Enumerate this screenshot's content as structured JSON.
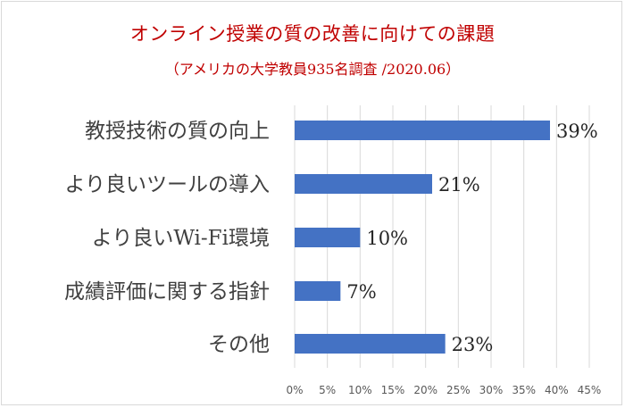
{
  "chart_data": {
    "type": "bar",
    "orientation": "horizontal",
    "title": "オンライン授業の質の改善に向けての課題",
    "subtitle": "（アメリカの大学教員935名調査 /2020.06）",
    "categories": [
      "教授技術の質の向上",
      "より良いツールの導入",
      "より良いWi-Fi環境",
      "成績評価に関する指針",
      "その他"
    ],
    "values": [
      39,
      21,
      10,
      7,
      23
    ],
    "value_labels": [
      "39%",
      "21%",
      "10%",
      "7%",
      "23%"
    ],
    "xlim": [
      0,
      45
    ],
    "xticks": [
      0,
      5,
      10,
      15,
      20,
      25,
      30,
      35,
      40,
      45
    ],
    "xtick_labels": [
      "0%",
      "5%",
      "10%",
      "15%",
      "20%",
      "25%",
      "30%",
      "35%",
      "40%",
      "45%"
    ],
    "grid": "vertical",
    "legend": "none",
    "bar_color": "#4472c4"
  }
}
